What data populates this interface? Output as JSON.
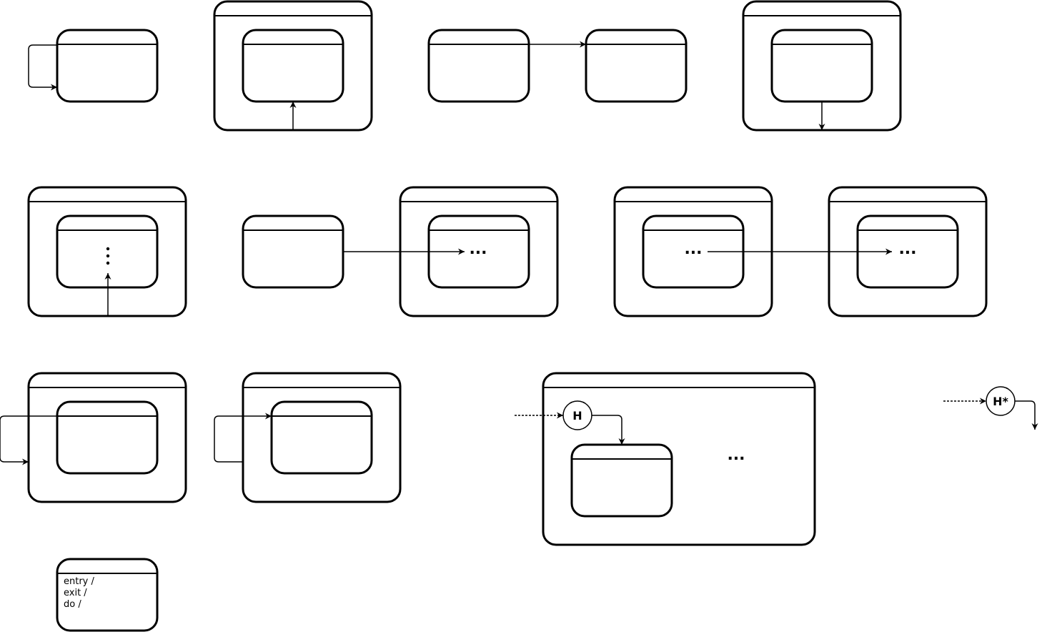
{
  "diagram": {
    "ellipsis": "...",
    "vertical_ellipsis": "⋮",
    "shallow_history_label": "H",
    "deep_history_label": "H*",
    "internal_activities": [
      "entry /",
      "exit /",
      "do /"
    ]
  }
}
